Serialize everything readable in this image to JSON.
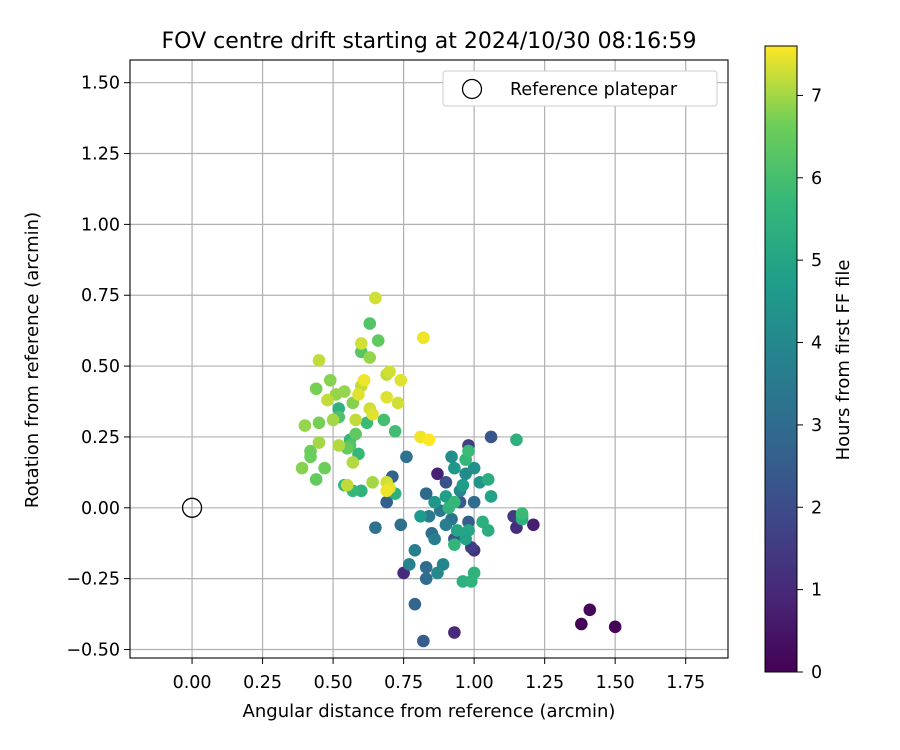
{
  "chart_data": {
    "type": "scatter",
    "title": "FOV centre drift starting at 2024/10/30 08:16:59",
    "xlabel": "Angular distance from reference (arcmin)",
    "ylabel": "Rotation from reference (arcmin)",
    "xlim": [
      -0.22,
      1.9
    ],
    "ylim": [
      -0.53,
      1.58
    ],
    "xticks": [
      "0.00",
      "0.25",
      "0.50",
      "0.75",
      "1.00",
      "1.25",
      "1.50",
      "1.75"
    ],
    "yticks": [
      "−0.50",
      "−0.25",
      "0.00",
      "0.25",
      "0.50",
      "0.75",
      "1.00",
      "1.25",
      "1.50"
    ],
    "grid": true,
    "legend": {
      "position": "top-right",
      "label": "Reference platepar"
    },
    "reference_point": {
      "x": 0.0,
      "y": 0.0
    },
    "colorbar": {
      "label": "Hours from first FF file",
      "min": 0,
      "max": 7.6,
      "ticks": [
        "0",
        "1",
        "2",
        "3",
        "4",
        "5",
        "6",
        "7"
      ],
      "colormap": "viridis"
    },
    "points": [
      {
        "x": 1.38,
        "y": -0.41,
        "c": 0.1
      },
      {
        "x": 1.41,
        "y": -0.36,
        "c": 0.2
      },
      {
        "x": 1.5,
        "y": -0.42,
        "c": 0.1
      },
      {
        "x": 0.93,
        "y": -0.44,
        "c": 1.0
      },
      {
        "x": 1.21,
        "y": -0.06,
        "c": 0.7
      },
      {
        "x": 1.15,
        "y": -0.07,
        "c": 1.1
      },
      {
        "x": 1.14,
        "y": -0.03,
        "c": 1.5
      },
      {
        "x": 0.75,
        "y": -0.23,
        "c": 1.0
      },
      {
        "x": 1.0,
        "y": -0.15,
        "c": 1.2
      },
      {
        "x": 0.99,
        "y": -0.14,
        "c": 1.6
      },
      {
        "x": 0.98,
        "y": 0.22,
        "c": 1.6
      },
      {
        "x": 1.06,
        "y": 0.25,
        "c": 2.3
      },
      {
        "x": 0.87,
        "y": 0.12,
        "c": 0.8
      },
      {
        "x": 0.82,
        "y": -0.47,
        "c": 2.5
      },
      {
        "x": 0.79,
        "y": -0.34,
        "c": 2.8
      },
      {
        "x": 0.83,
        "y": -0.25,
        "c": 3.0
      },
      {
        "x": 0.83,
        "y": -0.21,
        "c": 3.0
      },
      {
        "x": 0.85,
        "y": -0.09,
        "c": 3.1
      },
      {
        "x": 0.74,
        "y": -0.06,
        "c": 3.1
      },
      {
        "x": 0.65,
        "y": -0.07,
        "c": 3.2
      },
      {
        "x": 0.69,
        "y": 0.02,
        "c": 2.6
      },
      {
        "x": 0.71,
        "y": 0.11,
        "c": 2.7
      },
      {
        "x": 0.76,
        "y": 0.18,
        "c": 3.2
      },
      {
        "x": 0.83,
        "y": 0.05,
        "c": 2.9
      },
      {
        "x": 0.9,
        "y": 0.09,
        "c": 2.2
      },
      {
        "x": 0.95,
        "y": 0.02,
        "c": 2.4
      },
      {
        "x": 0.98,
        "y": -0.05,
        "c": 2.5
      },
      {
        "x": 0.93,
        "y": -0.11,
        "c": 2.2
      },
      {
        "x": 1.0,
        "y": 0.02,
        "c": 3.0
      },
      {
        "x": 0.92,
        "y": -0.04,
        "c": 3.3
      },
      {
        "x": 0.88,
        "y": -0.01,
        "c": 3.4
      },
      {
        "x": 0.84,
        "y": -0.03,
        "c": 3.5
      },
      {
        "x": 0.9,
        "y": -0.06,
        "c": 3.6
      },
      {
        "x": 0.86,
        "y": -0.11,
        "c": 3.6
      },
      {
        "x": 0.79,
        "y": -0.15,
        "c": 3.7
      },
      {
        "x": 0.77,
        "y": -0.2,
        "c": 3.8
      },
      {
        "x": 0.89,
        "y": -0.2,
        "c": 3.9
      },
      {
        "x": 0.87,
        "y": -0.23,
        "c": 4.0
      },
      {
        "x": 0.95,
        "y": 0.06,
        "c": 4.0
      },
      {
        "x": 0.97,
        "y": 0.12,
        "c": 4.1
      },
      {
        "x": 0.92,
        "y": 0.18,
        "c": 4.2
      },
      {
        "x": 1.0,
        "y": 0.14,
        "c": 4.3
      },
      {
        "x": 1.02,
        "y": 0.09,
        "c": 4.4
      },
      {
        "x": 0.93,
        "y": 0.14,
        "c": 4.5
      },
      {
        "x": 0.86,
        "y": 0.02,
        "c": 4.5
      },
      {
        "x": 0.81,
        "y": -0.03,
        "c": 4.6
      },
      {
        "x": 0.96,
        "y": 0.08,
        "c": 4.7
      },
      {
        "x": 0.9,
        "y": 0.04,
        "c": 4.8
      },
      {
        "x": 0.97,
        "y": -0.11,
        "c": 4.9
      },
      {
        "x": 0.94,
        "y": -0.08,
        "c": 5.0
      },
      {
        "x": 0.98,
        "y": -0.08,
        "c": 5.0
      },
      {
        "x": 1.06,
        "y": 0.04,
        "c": 4.9
      },
      {
        "x": 1.05,
        "y": 0.1,
        "c": 5.3
      },
      {
        "x": 1.05,
        "y": -0.08,
        "c": 5.3
      },
      {
        "x": 1.03,
        "y": -0.05,
        "c": 5.4
      },
      {
        "x": 1.17,
        "y": -0.03,
        "c": 5.2
      },
      {
        "x": 1.17,
        "y": -0.04,
        "c": 5.4
      },
      {
        "x": 1.15,
        "y": 0.24,
        "c": 5.4
      },
      {
        "x": 0.96,
        "y": -0.26,
        "c": 5.4
      },
      {
        "x": 0.99,
        "y": -0.26,
        "c": 5.5
      },
      {
        "x": 1.0,
        "y": -0.23,
        "c": 5.5
      },
      {
        "x": 0.93,
        "y": -0.13,
        "c": 5.6
      },
      {
        "x": 0.91,
        "y": 0.0,
        "c": 5.6
      },
      {
        "x": 0.93,
        "y": 0.02,
        "c": 5.7
      },
      {
        "x": 0.97,
        "y": 0.17,
        "c": 5.7
      },
      {
        "x": 0.98,
        "y": 0.2,
        "c": 5.8
      },
      {
        "x": 1.17,
        "y": -0.02,
        "c": 5.8
      },
      {
        "x": 0.72,
        "y": 0.05,
        "c": 5.4
      },
      {
        "x": 0.6,
        "y": 0.06,
        "c": 5.5
      },
      {
        "x": 0.57,
        "y": 0.06,
        "c": 5.7
      },
      {
        "x": 0.54,
        "y": 0.08,
        "c": 5.6
      },
      {
        "x": 0.52,
        "y": 0.35,
        "c": 5.5
      },
      {
        "x": 0.56,
        "y": 0.24,
        "c": 5.6
      },
      {
        "x": 0.59,
        "y": 0.19,
        "c": 5.7
      },
      {
        "x": 0.62,
        "y": 0.3,
        "c": 5.8
      },
      {
        "x": 0.72,
        "y": 0.27,
        "c": 5.9
      },
      {
        "x": 0.68,
        "y": 0.31,
        "c": 6.0
      },
      {
        "x": 0.52,
        "y": 0.32,
        "c": 6.1
      },
      {
        "x": 0.63,
        "y": 0.65,
        "c": 6.2
      },
      {
        "x": 0.6,
        "y": 0.55,
        "c": 6.3
      },
      {
        "x": 0.66,
        "y": 0.59,
        "c": 6.4
      },
      {
        "x": 0.56,
        "y": 0.22,
        "c": 6.2
      },
      {
        "x": 0.58,
        "y": 0.26,
        "c": 6.4
      },
      {
        "x": 0.55,
        "y": 0.21,
        "c": 6.5
      },
      {
        "x": 0.47,
        "y": 0.14,
        "c": 6.6
      },
      {
        "x": 0.44,
        "y": 0.1,
        "c": 6.5
      },
      {
        "x": 0.42,
        "y": 0.2,
        "c": 6.6
      },
      {
        "x": 0.42,
        "y": 0.18,
        "c": 6.6
      },
      {
        "x": 0.45,
        "y": 0.3,
        "c": 6.7
      },
      {
        "x": 0.44,
        "y": 0.42,
        "c": 6.7
      },
      {
        "x": 0.49,
        "y": 0.45,
        "c": 6.8
      },
      {
        "x": 0.51,
        "y": 0.4,
        "c": 6.9
      },
      {
        "x": 0.54,
        "y": 0.41,
        "c": 6.9
      },
      {
        "x": 0.57,
        "y": 0.37,
        "c": 6.8
      },
      {
        "x": 0.5,
        "y": 0.31,
        "c": 7.0
      },
      {
        "x": 0.4,
        "y": 0.29,
        "c": 6.9
      },
      {
        "x": 0.39,
        "y": 0.14,
        "c": 6.8
      },
      {
        "x": 0.45,
        "y": 0.23,
        "c": 7.0
      },
      {
        "x": 0.52,
        "y": 0.22,
        "c": 7.1
      },
      {
        "x": 0.57,
        "y": 0.16,
        "c": 7.1
      },
      {
        "x": 0.55,
        "y": 0.08,
        "c": 7.2
      },
      {
        "x": 0.64,
        "y": 0.09,
        "c": 7.0
      },
      {
        "x": 0.69,
        "y": 0.09,
        "c": 7.3
      },
      {
        "x": 0.7,
        "y": 0.07,
        "c": 7.4
      },
      {
        "x": 0.69,
        "y": 0.06,
        "c": 7.5
      },
      {
        "x": 0.58,
        "y": 0.31,
        "c": 7.2
      },
      {
        "x": 0.6,
        "y": 0.43,
        "c": 7.2
      },
      {
        "x": 0.63,
        "y": 0.35,
        "c": 7.3
      },
      {
        "x": 0.64,
        "y": 0.33,
        "c": 7.4
      },
      {
        "x": 0.48,
        "y": 0.38,
        "c": 7.2
      },
      {
        "x": 0.59,
        "y": 0.4,
        "c": 7.4
      },
      {
        "x": 0.65,
        "y": 0.74,
        "c": 7.3
      },
      {
        "x": 0.63,
        "y": 0.53,
        "c": 6.9
      },
      {
        "x": 0.6,
        "y": 0.58,
        "c": 7.3
      },
      {
        "x": 0.45,
        "y": 0.52,
        "c": 7.2
      },
      {
        "x": 0.69,
        "y": 0.47,
        "c": 7.2
      },
      {
        "x": 0.7,
        "y": 0.48,
        "c": 7.3
      },
      {
        "x": 0.74,
        "y": 0.45,
        "c": 7.4
      },
      {
        "x": 0.69,
        "y": 0.39,
        "c": 7.4
      },
      {
        "x": 0.73,
        "y": 0.37,
        "c": 7.3
      },
      {
        "x": 0.82,
        "y": 0.6,
        "c": 7.5
      },
      {
        "x": 0.81,
        "y": 0.25,
        "c": 7.5
      },
      {
        "x": 0.84,
        "y": 0.24,
        "c": 7.6
      },
      {
        "x": 0.61,
        "y": 0.45,
        "c": 7.5
      }
    ]
  }
}
